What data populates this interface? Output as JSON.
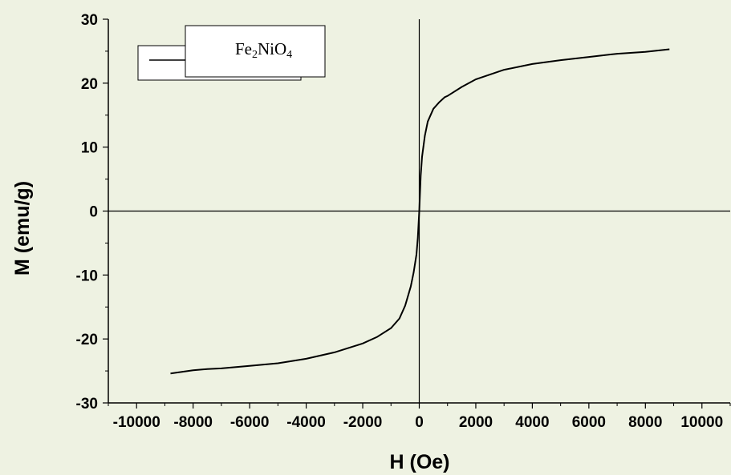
{
  "chart_data": {
    "type": "line",
    "title": "",
    "xlabel": "H (Oe)",
    "ylabel": "M (emu/g)",
    "xlim": [
      -11000,
      11000
    ],
    "ylim": [
      -30,
      30
    ],
    "x_ticks": [
      -10000,
      -8000,
      -6000,
      -4000,
      -2000,
      0,
      2000,
      4000,
      6000,
      8000,
      10000
    ],
    "y_ticks": [
      -30,
      -20,
      -10,
      0,
      10,
      20,
      30
    ],
    "x_tick_labels": [
      "-10000",
      "-8000",
      "-6000",
      "-4000",
      "-2000",
      "0",
      "2000",
      "4000",
      "6000",
      "8000",
      "10000"
    ],
    "y_tick_labels": [
      "-30",
      "-20",
      "-10",
      "0",
      "10",
      "20",
      "30"
    ],
    "grid": false,
    "legend_position": "top-left",
    "legend": {
      "prefix": "Fe",
      "sub1": "2",
      "mid": "NiO",
      "sub2": "4"
    },
    "colors": {
      "background": "#eef2e2",
      "line": "#000000",
      "legend_box": "#ffffff"
    },
    "series": [
      {
        "name": "Fe2NiO4",
        "x": [
          -8800,
          -8000,
          -7500,
          -7000,
          -6000,
          -5000,
          -4000,
          -3000,
          -2000,
          -1500,
          -1000,
          -700,
          -500,
          -300,
          -200,
          -100,
          -50,
          0,
          50,
          100,
          200,
          300,
          500,
          700,
          900,
          1000,
          1500,
          2000,
          3000,
          4000,
          5000,
          6000,
          7000,
          8000,
          8850
        ],
        "y": [
          -25.4,
          -24.9,
          -24.7,
          -24.6,
          -24.2,
          -23.8,
          -23.1,
          -22.1,
          -20.7,
          -19.7,
          -18.3,
          -16.8,
          -14.8,
          -11.8,
          -9.6,
          -6.8,
          -4.2,
          0,
          5.5,
          8.5,
          11.8,
          14.0,
          16.0,
          17.0,
          17.8,
          18.0,
          19.4,
          20.6,
          22.1,
          23.0,
          23.6,
          24.1,
          24.6,
          24.9,
          25.3
        ]
      }
    ]
  }
}
